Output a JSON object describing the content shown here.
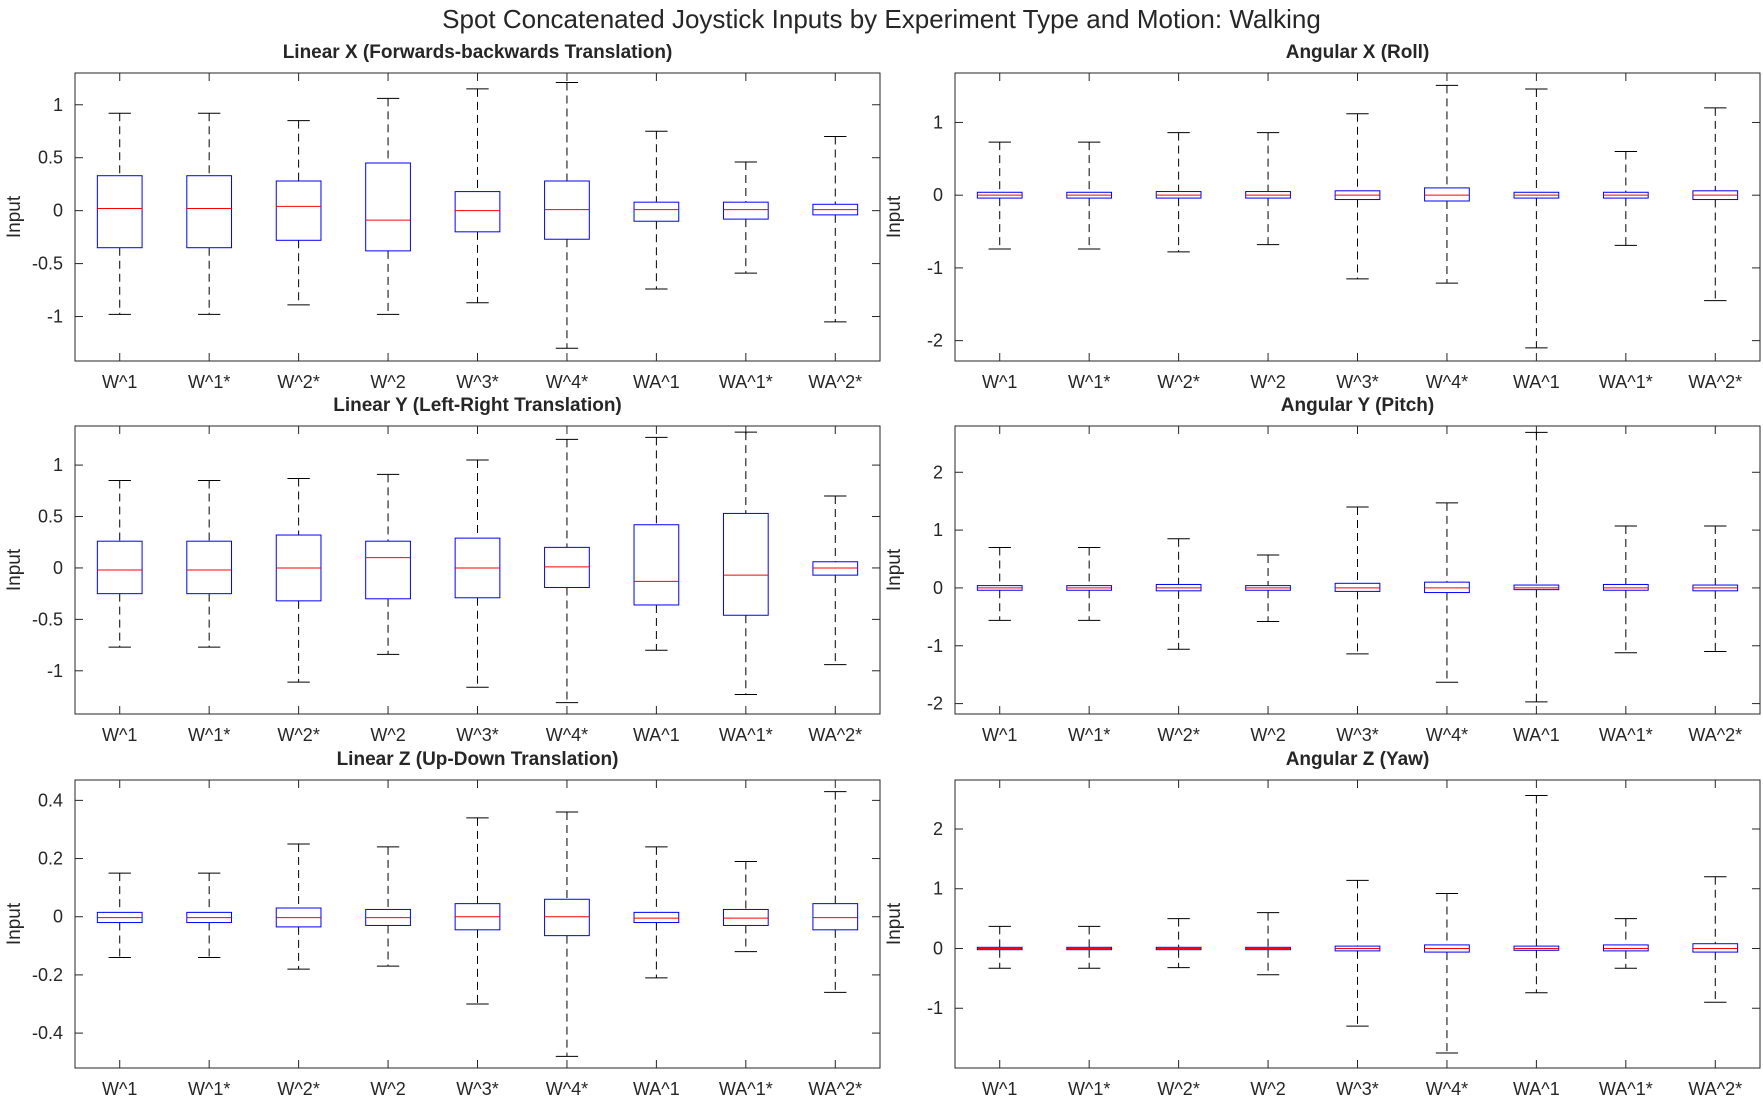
{
  "figure": {
    "title": "Spot Concatenated Joystick Inputs by Experiment Type and Motion: Walking"
  },
  "colors": {
    "box": "#0000ff",
    "median": "#ff0000",
    "whisker": "#000000",
    "axis": "#262626"
  },
  "chart_data": [
    {
      "type": "box",
      "title": "Linear X (Forwards-backwards Translation)",
      "ylabel": "Input",
      "xlabel": "",
      "categories": [
        "W^1",
        "W^1*",
        "W^2*",
        "W^2",
        "W^3*",
        "W^4*",
        "WA^1",
        "WA^1*",
        "WA^2*"
      ],
      "ylim": [
        -1.42,
        1.3
      ],
      "yticks": [
        -1,
        -0.5,
        0,
        0.5,
        1
      ],
      "grid": false,
      "boxes": [
        {
          "min": -0.98,
          "q1": -0.35,
          "median": 0.02,
          "q3": 0.33,
          "max": 0.92
        },
        {
          "min": -0.98,
          "q1": -0.35,
          "median": 0.02,
          "q3": 0.33,
          "max": 0.92
        },
        {
          "min": -0.89,
          "q1": -0.28,
          "median": 0.04,
          "q3": 0.28,
          "max": 0.85
        },
        {
          "min": -0.98,
          "q1": -0.38,
          "median": -0.09,
          "q3": 0.45,
          "max": 1.06
        },
        {
          "min": -0.87,
          "q1": -0.2,
          "median": 0.0,
          "q3": 0.18,
          "max": 1.15
        },
        {
          "min": -1.3,
          "q1": -0.27,
          "median": 0.01,
          "q3": 0.28,
          "max": 1.21
        },
        {
          "min": -0.74,
          "q1": -0.1,
          "median": 0.01,
          "q3": 0.08,
          "max": 0.75
        },
        {
          "min": -0.59,
          "q1": -0.08,
          "median": 0.01,
          "q3": 0.08,
          "max": 0.46
        },
        {
          "min": -1.05,
          "q1": -0.04,
          "median": 0.01,
          "q3": 0.06,
          "max": 0.7
        }
      ]
    },
    {
      "type": "box",
      "title": "Angular X (Roll)",
      "ylabel": "Input",
      "xlabel": "",
      "categories": [
        "W^1",
        "W^1*",
        "W^2*",
        "W^2",
        "W^3*",
        "W^4*",
        "WA^1",
        "WA^1*",
        "WA^2*"
      ],
      "ylim": [
        -2.28,
        1.68
      ],
      "yticks": [
        -2,
        -1,
        0,
        1
      ],
      "grid": false,
      "boxes": [
        {
          "min": -0.74,
          "q1": -0.04,
          "median": 0.0,
          "q3": 0.04,
          "max": 0.73
        },
        {
          "min": -0.74,
          "q1": -0.04,
          "median": 0.0,
          "q3": 0.04,
          "max": 0.73
        },
        {
          "min": -0.78,
          "q1": -0.04,
          "median": 0.0,
          "q3": 0.05,
          "max": 0.86
        },
        {
          "min": -0.68,
          "q1": -0.04,
          "median": 0.0,
          "q3": 0.05,
          "max": 0.86
        },
        {
          "min": -1.15,
          "q1": -0.06,
          "median": 0.0,
          "q3": 0.06,
          "max": 1.12
        },
        {
          "min": -1.21,
          "q1": -0.08,
          "median": 0.0,
          "q3": 0.1,
          "max": 1.51
        },
        {
          "min": -2.1,
          "q1": -0.04,
          "median": 0.0,
          "q3": 0.04,
          "max": 1.46
        },
        {
          "min": -0.69,
          "q1": -0.04,
          "median": 0.0,
          "q3": 0.04,
          "max": 0.6
        },
        {
          "min": -1.45,
          "q1": -0.06,
          "median": 0.0,
          "q3": 0.06,
          "max": 1.2
        }
      ]
    },
    {
      "type": "box",
      "title": "Linear Y (Left-Right Translation)",
      "ylabel": "Input",
      "xlabel": "",
      "categories": [
        "W^1",
        "W^1*",
        "W^2*",
        "W^2",
        "W^3*",
        "W^4*",
        "WA^1",
        "WA^1*",
        "WA^2*"
      ],
      "ylim": [
        -1.42,
        1.38
      ],
      "yticks": [
        -1,
        -0.5,
        0,
        0.5,
        1
      ],
      "grid": false,
      "boxes": [
        {
          "min": -0.77,
          "q1": -0.25,
          "median": -0.02,
          "q3": 0.26,
          "max": 0.85
        },
        {
          "min": -0.77,
          "q1": -0.25,
          "median": -0.02,
          "q3": 0.26,
          "max": 0.85
        },
        {
          "min": -1.11,
          "q1": -0.32,
          "median": 0.0,
          "q3": 0.32,
          "max": 0.87
        },
        {
          "min": -0.84,
          "q1": -0.3,
          "median": 0.1,
          "q3": 0.26,
          "max": 0.91
        },
        {
          "min": -1.16,
          "q1": -0.29,
          "median": 0.0,
          "q3": 0.29,
          "max": 1.05
        },
        {
          "min": -1.31,
          "q1": -0.19,
          "median": 0.01,
          "q3": 0.2,
          "max": 1.25
        },
        {
          "min": -0.8,
          "q1": -0.36,
          "median": -0.13,
          "q3": 0.42,
          "max": 1.27
        },
        {
          "min": -1.23,
          "q1": -0.46,
          "median": -0.07,
          "q3": 0.53,
          "max": 1.32
        },
        {
          "min": -0.94,
          "q1": -0.07,
          "median": 0.0,
          "q3": 0.06,
          "max": 0.7
        }
      ]
    },
    {
      "type": "box",
      "title": "Angular Y (Pitch)",
      "ylabel": "Input",
      "xlabel": "",
      "categories": [
        "W^1",
        "W^1*",
        "W^2*",
        "W^2",
        "W^3*",
        "W^4*",
        "WA^1",
        "WA^1*",
        "WA^2*"
      ],
      "ylim": [
        -2.18,
        2.8
      ],
      "yticks": [
        -2,
        -1,
        0,
        1,
        2
      ],
      "grid": false,
      "boxes": [
        {
          "min": -0.56,
          "q1": -0.04,
          "median": 0.0,
          "q3": 0.04,
          "max": 0.7
        },
        {
          "min": -0.56,
          "q1": -0.04,
          "median": 0.0,
          "q3": 0.04,
          "max": 0.7
        },
        {
          "min": -1.06,
          "q1": -0.05,
          "median": 0.0,
          "q3": 0.06,
          "max": 0.85
        },
        {
          "min": -0.58,
          "q1": -0.04,
          "median": 0.0,
          "q3": 0.04,
          "max": 0.57
        },
        {
          "min": -1.14,
          "q1": -0.06,
          "median": 0.0,
          "q3": 0.08,
          "max": 1.4
        },
        {
          "min": -1.63,
          "q1": -0.08,
          "median": 0.0,
          "q3": 0.1,
          "max": 1.47
        },
        {
          "min": -1.97,
          "q1": -0.03,
          "median": 0.0,
          "q3": 0.05,
          "max": 2.69
        },
        {
          "min": -1.12,
          "q1": -0.04,
          "median": 0.0,
          "q3": 0.06,
          "max": 1.07
        },
        {
          "min": -1.1,
          "q1": -0.05,
          "median": 0.0,
          "q3": 0.05,
          "max": 1.07
        }
      ]
    },
    {
      "type": "box",
      "title": "Linear Z (Up-Down Translation)",
      "ylabel": "Input",
      "xlabel": "",
      "categories": [
        "W^1",
        "W^1*",
        "W^2*",
        "W^2",
        "W^3*",
        "W^4*",
        "WA^1",
        "WA^1*",
        "WA^2*"
      ],
      "ylim": [
        -0.52,
        0.47
      ],
      "yticks": [
        -0.4,
        -0.2,
        0,
        0.2,
        0.4
      ],
      "grid": false,
      "boxes": [
        {
          "min": -0.14,
          "q1": -0.02,
          "median": -0.003,
          "q3": 0.015,
          "max": 0.15
        },
        {
          "min": -0.14,
          "q1": -0.02,
          "median": -0.003,
          "q3": 0.015,
          "max": 0.15
        },
        {
          "min": -0.18,
          "q1": -0.035,
          "median": -0.003,
          "q3": 0.03,
          "max": 0.25
        },
        {
          "min": -0.17,
          "q1": -0.03,
          "median": -0.003,
          "q3": 0.025,
          "max": 0.24
        },
        {
          "min": -0.3,
          "q1": -0.045,
          "median": 0.0,
          "q3": 0.045,
          "max": 0.34
        },
        {
          "min": -0.48,
          "q1": -0.065,
          "median": 0.0,
          "q3": 0.06,
          "max": 0.36
        },
        {
          "min": -0.21,
          "q1": -0.02,
          "median": -0.005,
          "q3": 0.015,
          "max": 0.24
        },
        {
          "min": -0.12,
          "q1": -0.03,
          "median": -0.005,
          "q3": 0.025,
          "max": 0.19
        },
        {
          "min": -0.26,
          "q1": -0.045,
          "median": -0.003,
          "q3": 0.045,
          "max": 0.43
        }
      ]
    },
    {
      "type": "box",
      "title": "Angular Z (Yaw)",
      "ylabel": "Input",
      "xlabel": "",
      "categories": [
        "W^1",
        "W^1*",
        "W^2*",
        "W^2",
        "W^3*",
        "W^4*",
        "WA^1",
        "WA^1*",
        "WA^2*"
      ],
      "ylim": [
        -2.0,
        2.82
      ],
      "yticks": [
        -1,
        0,
        1,
        2
      ],
      "grid": false,
      "boxes": [
        {
          "min": -0.33,
          "q1": -0.02,
          "median": 0.0,
          "q3": 0.02,
          "max": 0.37
        },
        {
          "min": -0.33,
          "q1": -0.02,
          "median": 0.0,
          "q3": 0.02,
          "max": 0.37
        },
        {
          "min": -0.32,
          "q1": -0.02,
          "median": 0.0,
          "q3": 0.02,
          "max": 0.5
        },
        {
          "min": -0.44,
          "q1": -0.02,
          "median": 0.0,
          "q3": 0.02,
          "max": 0.6
        },
        {
          "min": -1.3,
          "q1": -0.04,
          "median": 0.0,
          "q3": 0.04,
          "max": 1.14
        },
        {
          "min": -1.75,
          "q1": -0.06,
          "median": 0.0,
          "q3": 0.06,
          "max": 0.92
        },
        {
          "min": -0.74,
          "q1": -0.03,
          "median": 0.0,
          "q3": 0.04,
          "max": 2.56
        },
        {
          "min": -0.33,
          "q1": -0.04,
          "median": 0.0,
          "q3": 0.06,
          "max": 0.5
        },
        {
          "min": -0.9,
          "q1": -0.06,
          "median": 0.0,
          "q3": 0.08,
          "max": 1.2
        }
      ]
    }
  ]
}
